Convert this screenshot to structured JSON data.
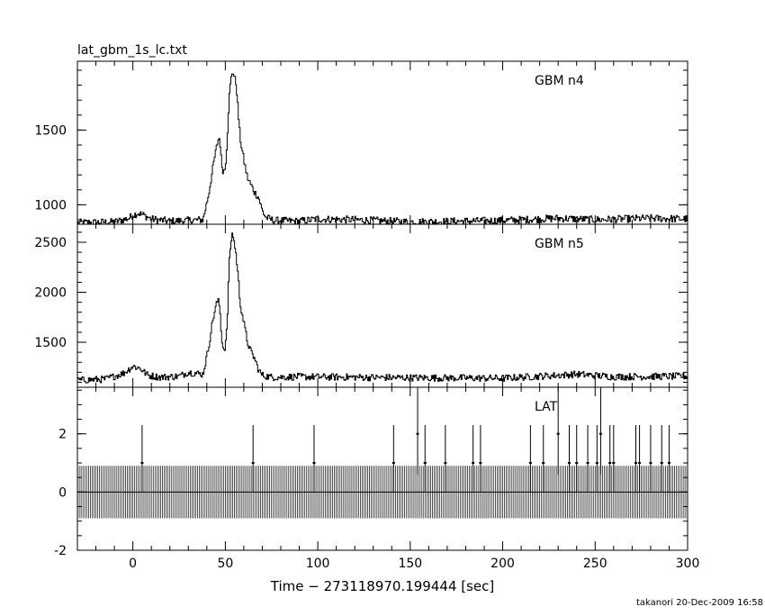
{
  "file_title": "lat_gbm_1s_lc.txt",
  "footer": "takanori 20-Dec-2009 16:58",
  "chart_data": {
    "type": "line",
    "xlabel": "Time − 273118970.199444 [sec]",
    "xlim": [
      -30,
      300
    ],
    "x_ticks": [
      0,
      50,
      100,
      150,
      200,
      250,
      300
    ],
    "x_minor_step": 10,
    "grid": false,
    "panels": [
      {
        "name": "GBM n4",
        "ylim": [
          870,
          1960
        ],
        "y_ticks": [
          1000,
          1500
        ],
        "y_minor_step": 100,
        "background": 880,
        "noise": 25,
        "profile": [
          [
            -30,
            880
          ],
          [
            -10,
            885
          ],
          [
            -2,
            910
          ],
          [
            0,
            930
          ],
          [
            3,
            945
          ],
          [
            6,
            930
          ],
          [
            10,
            905
          ],
          [
            20,
            890
          ],
          [
            30,
            895
          ],
          [
            38,
            900
          ],
          [
            41,
            1070
          ],
          [
            44,
            1300
          ],
          [
            46,
            1430
          ],
          [
            47,
            1450
          ],
          [
            48,
            1270
          ],
          [
            49,
            1220
          ],
          [
            50,
            1250
          ],
          [
            51,
            1430
          ],
          [
            52,
            1700
          ],
          [
            53,
            1830
          ],
          [
            54,
            1900
          ],
          [
            55,
            1850
          ],
          [
            56,
            1800
          ],
          [
            57,
            1620
          ],
          [
            58,
            1450
          ],
          [
            60,
            1300
          ],
          [
            62,
            1180
          ],
          [
            64,
            1130
          ],
          [
            66,
            1080
          ],
          [
            68,
            1050
          ],
          [
            70,
            960
          ],
          [
            72,
            915
          ],
          [
            76,
            895
          ],
          [
            90,
            890
          ],
          [
            100,
            905
          ],
          [
            120,
            900
          ],
          [
            150,
            885
          ],
          [
            200,
            895
          ],
          [
            230,
            910
          ],
          [
            250,
            900
          ],
          [
            280,
            910
          ],
          [
            300,
            905
          ]
        ]
      },
      {
        "name": "GBM n5",
        "ylim": [
          1050,
          2680
        ],
        "y_ticks": [
          1500,
          2000,
          2500
        ],
        "y_minor_step": 100,
        "background": 1130,
        "noise": 35,
        "profile": [
          [
            -30,
            1120
          ],
          [
            -15,
            1130
          ],
          [
            -5,
            1190
          ],
          [
            0,
            1260
          ],
          [
            4,
            1240
          ],
          [
            8,
            1170
          ],
          [
            15,
            1150
          ],
          [
            25,
            1160
          ],
          [
            30,
            1200
          ],
          [
            38,
            1180
          ],
          [
            41,
            1450
          ],
          [
            43,
            1700
          ],
          [
            45,
            1870
          ],
          [
            46,
            1920
          ],
          [
            47,
            1860
          ],
          [
            48,
            1550
          ],
          [
            49,
            1420
          ],
          [
            50,
            1460
          ],
          [
            51,
            1650
          ],
          [
            52,
            2250
          ],
          [
            53,
            2500
          ],
          [
            54,
            2600
          ],
          [
            55,
            2480
          ],
          [
            56,
            2350
          ],
          [
            57,
            2150
          ],
          [
            58,
            1900
          ],
          [
            60,
            1700
          ],
          [
            62,
            1500
          ],
          [
            64,
            1400
          ],
          [
            66,
            1330
          ],
          [
            68,
            1220
          ],
          [
            70,
            1170
          ],
          [
            75,
            1150
          ],
          [
            90,
            1155
          ],
          [
            150,
            1145
          ],
          [
            200,
            1140
          ],
          [
            240,
            1180
          ],
          [
            260,
            1155
          ],
          [
            300,
            1160
          ]
        ]
      },
      {
        "name": "LAT",
        "ylim": [
          -2,
          3.6
        ],
        "y_ticks": [
          -2,
          0,
          2
        ],
        "y_minor_step": 0.5,
        "errorbar_half": 0.9,
        "events": [
          {
            "t": 5,
            "count": 1
          },
          {
            "t": 65,
            "count": 1
          },
          {
            "t": 98,
            "count": 1
          },
          {
            "t": 141,
            "count": 1
          },
          {
            "t": 154,
            "count": 2
          },
          {
            "t": 158,
            "count": 1
          },
          {
            "t": 169,
            "count": 1
          },
          {
            "t": 184,
            "count": 1
          },
          {
            "t": 188,
            "count": 1
          },
          {
            "t": 215,
            "count": 1
          },
          {
            "t": 222,
            "count": 1
          },
          {
            "t": 230,
            "count": 2
          },
          {
            "t": 236,
            "count": 1
          },
          {
            "t": 240,
            "count": 1
          },
          {
            "t": 246,
            "count": 1
          },
          {
            "t": 251,
            "count": 1
          },
          {
            "t": 253,
            "count": 2
          },
          {
            "t": 258,
            "count": 1
          },
          {
            "t": 260,
            "count": 1
          },
          {
            "t": 272,
            "count": 1
          },
          {
            "t": 274,
            "count": 1
          },
          {
            "t": 280,
            "count": 1
          },
          {
            "t": 286,
            "count": 1
          },
          {
            "t": 290,
            "count": 1
          }
        ]
      }
    ]
  }
}
